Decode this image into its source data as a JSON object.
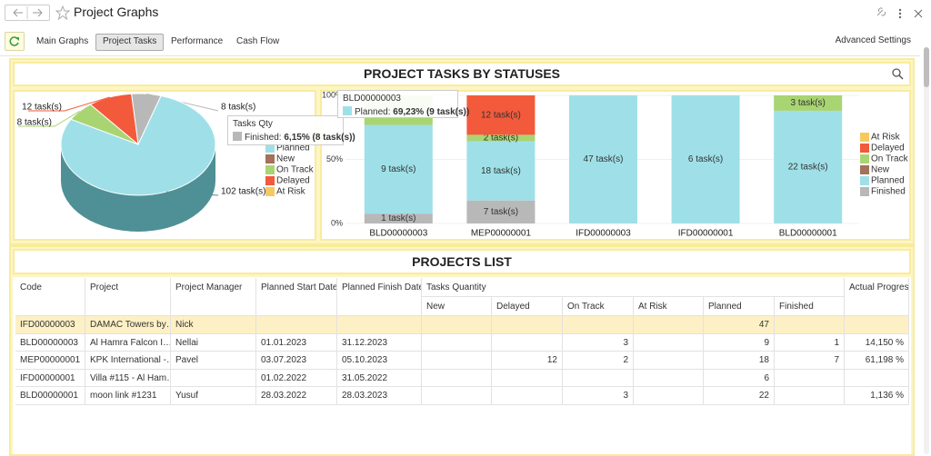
{
  "header": {
    "title": "Project Graphs"
  },
  "tabs": {
    "items": [
      "Main Graphs",
      "Project Tasks",
      "Performance",
      "Cash Flow"
    ],
    "active": 1,
    "settings": "Advanced Settings"
  },
  "status_panel": {
    "title": "PROJECT TASKS BY STATUSES"
  },
  "chart_data": [
    {
      "type": "pie",
      "categories": [
        "Finished",
        "Planned",
        "New",
        "On Track",
        "Delayed",
        "At Risk"
      ],
      "values": [
        8,
        102,
        0,
        8,
        12,
        0
      ],
      "value_labels": [
        "8 task(s)",
        "102 task(s)",
        null,
        "8 task(s)",
        "12 task(s)",
        null
      ],
      "colors": [
        "#b8b8b8",
        "#9fe0e8",
        "#a3715c",
        "#a9d472",
        "#f25a3b",
        "#f6c95f"
      ],
      "side_color": "#4f9096",
      "tooltip": {
        "title": "Tasks Qty",
        "name": "Finished:",
        "text": "6,15% (8 task(s))"
      }
    },
    {
      "type": "bar",
      "stacked": "percent",
      "categories": [
        "BLD00000003",
        "MEP00000001",
        "IFD00000003",
        "IFD00000001",
        "BLD00000001"
      ],
      "series": [
        {
          "name": "Finished",
          "color": "#b8b8b8",
          "values": [
            1,
            7,
            0,
            0,
            0
          ],
          "value_labels": [
            "1 task(s)",
            "7 task(s)",
            null,
            null,
            null
          ]
        },
        {
          "name": "Planned",
          "color": "#9fe0e8",
          "values": [
            9,
            18,
            47,
            6,
            22
          ],
          "value_labels": [
            "9 task(s)",
            "18 task(s)",
            "47 task(s)",
            "6 task(s)",
            "22 task(s)"
          ]
        },
        {
          "name": "New",
          "color": "#a3715c",
          "values": [
            0,
            0,
            0,
            0,
            0
          ],
          "value_labels": [
            null,
            null,
            null,
            null,
            null
          ]
        },
        {
          "name": "On Track",
          "color": "#a9d472",
          "values": [
            3,
            2,
            0,
            0,
            3
          ],
          "value_labels": [
            null,
            "2 task(s)",
            null,
            null,
            "3 task(s)"
          ]
        },
        {
          "name": "Delayed",
          "color": "#f25a3b",
          "values": [
            0,
            12,
            0,
            0,
            0
          ],
          "value_labels": [
            null,
            "12 task(s)",
            null,
            null,
            null
          ]
        },
        {
          "name": "At Risk",
          "color": "#f6c95f",
          "values": [
            0,
            0,
            0,
            0,
            0
          ],
          "value_labels": [
            null,
            null,
            null,
            null,
            null
          ]
        }
      ],
      "ylim": [
        0,
        100
      ],
      "yticks": [
        {
          "value": 0,
          "label": "0%"
        },
        {
          "value": 50,
          "label": "50%"
        },
        {
          "value": 100,
          "label": "100%"
        }
      ],
      "tooltip": {
        "title": "BLD00000003",
        "name": "Planned:",
        "text": "69,23% (9 task(s))"
      }
    }
  ],
  "projects": {
    "title": "PROJECTS LIST",
    "columns": [
      "Code",
      "Project",
      "Project Manager",
      "Planned Start Date",
      "Planned Finish Date",
      "Tasks Quantity",
      "Actual Progress"
    ],
    "task_columns": [
      "New",
      "Delayed",
      "On Track",
      "At Risk",
      "Planned",
      "Finished"
    ],
    "highlighted_row": 0,
    "rows": [
      [
        "IFD00000003",
        "DAMAC Towers by…",
        "Nick",
        null,
        null,
        null,
        null,
        null,
        null,
        47,
        null,
        null
      ],
      [
        "BLD00000003",
        "Al Hamra Falcon I…",
        "Nellai",
        "01.01.2023",
        "31.12.2023",
        null,
        null,
        3,
        null,
        9,
        1,
        "14,150 %"
      ],
      [
        "MEP00000001",
        "KPK International -…",
        "Pavel",
        "03.07.2023",
        "05.10.2023",
        null,
        12,
        2,
        null,
        18,
        7,
        "61,198 %"
      ],
      [
        "IFD00000001",
        "Villa #115 - Al Ham…",
        null,
        "01.02.2022",
        "31.05.2022",
        null,
        null,
        null,
        null,
        6,
        null,
        null
      ],
      [
        "BLD00000001",
        "moon link #1231",
        "Yusuf",
        "28.03.2022",
        "28.03.2023",
        null,
        null,
        3,
        null,
        22,
        null,
        "1,136 %"
      ]
    ]
  }
}
